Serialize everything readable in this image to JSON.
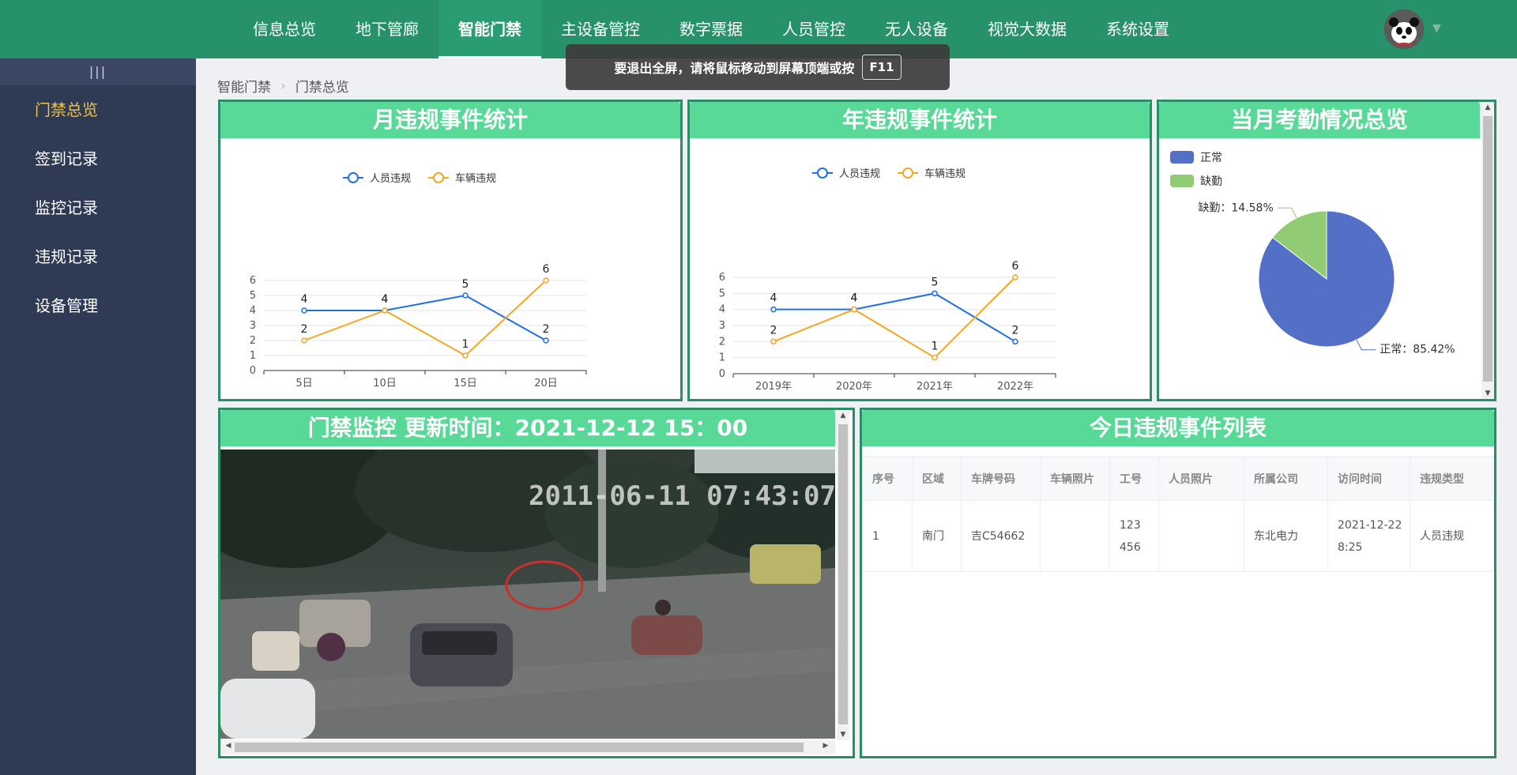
{
  "nav": {
    "items": [
      "信息总览",
      "地下管廊",
      "智能门禁",
      "主设备管控",
      "数字票据",
      "人员管控",
      "无人设备",
      "视觉大数据",
      "系统设置"
    ],
    "active_index": 2
  },
  "fullscreen_tip": {
    "text": "要退出全屏，请将鼠标移动到屏幕顶端或按",
    "key": "F11"
  },
  "sidebar": {
    "toggle": "|||",
    "items": [
      "门禁总览",
      "签到记录",
      "监控记录",
      "违规记录",
      "设备管理"
    ],
    "active_index": 0
  },
  "breadcrumb": {
    "root": "智能门禁",
    "current": "门禁总览"
  },
  "panels": {
    "monthly_title": "月违规事件统计",
    "yearly_title": "年违规事件统计",
    "attendance_title": "当月考勤情况总览",
    "monitor_title": "门禁监控 更新时间：2021-12-12 15：00",
    "events_title": "今日违规事件列表"
  },
  "colors": {
    "person": "#1f6fe8",
    "vehicle": "#f5a623",
    "normal": "#5470c6",
    "absent": "#91cc75",
    "nav": "#27926a",
    "panel_head": "#58d998"
  },
  "chart_data": [
    {
      "type": "line",
      "categories": [
        "5日",
        "10日",
        "15日",
        "20日"
      ],
      "series": [
        {
          "name": "人员违规",
          "values": [
            4,
            4,
            5,
            2
          ]
        },
        {
          "name": "车辆违规",
          "values": [
            2,
            4,
            1,
            6
          ]
        }
      ],
      "ylim": [
        0,
        6
      ],
      "yticks": [
        "0",
        "1",
        "2",
        "3",
        "4",
        "5",
        "6"
      ],
      "legend": "top-center",
      "grid": true
    },
    {
      "type": "line",
      "categories": [
        "2019年",
        "2020年",
        "2021年",
        "2022年"
      ],
      "series": [
        {
          "name": "人员违规",
          "values": [
            4,
            4,
            5,
            2
          ]
        },
        {
          "name": "车辆违规",
          "values": [
            2,
            4,
            1,
            6
          ]
        }
      ],
      "ylim": [
        0,
        6
      ],
      "yticks": [
        "0",
        "1",
        "2",
        "3",
        "4",
        "5",
        "6"
      ],
      "legend": "top-center",
      "grid": true
    },
    {
      "type": "pie",
      "slices": [
        {
          "name": "正常",
          "value": 85.42,
          "label": "正常：85.42%"
        },
        {
          "name": "缺勤",
          "value": 14.58,
          "label": "缺勤：14.58%"
        }
      ],
      "legend": "top-left"
    }
  ],
  "events_table": {
    "columns": [
      "序号",
      "区域",
      "车牌号码",
      "车辆照片",
      "工号",
      "人员照片",
      "所属公司",
      "访问时间",
      "违规类型"
    ],
    "rows": [
      [
        "1",
        "南门",
        "吉C54662",
        "",
        "123456",
        "",
        "东北电力",
        "2021-12-22 8:25",
        "人员违规"
      ]
    ]
  },
  "video_overlay_text": "2011-06-11 07:43:07"
}
